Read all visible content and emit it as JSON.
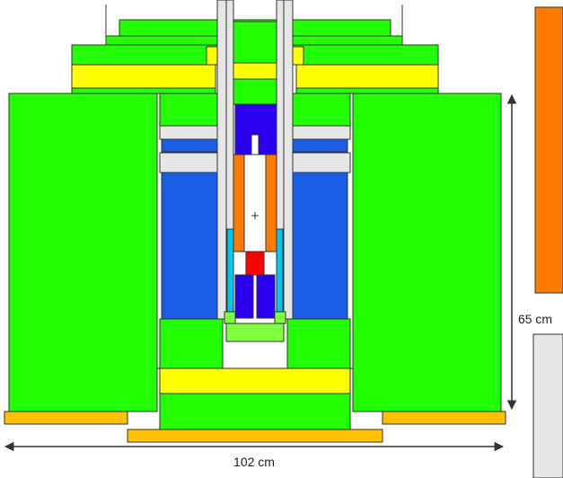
{
  "diagram": {
    "dimensions": {
      "width_label": "102 cm",
      "height_label": "65 cm"
    },
    "colors": {
      "shield_green": "#22ff00",
      "yellow": "#ffff00",
      "gold": "#ffc000",
      "blue": "#1a5ee6",
      "dark_blue": "#2b00f0",
      "orange": "#ff7a00",
      "red": "#ff0000",
      "cyan": "#00c8f0",
      "light_green": "#7fff3f",
      "gray": "#e6e6e6",
      "outline": "#333333"
    }
  }
}
